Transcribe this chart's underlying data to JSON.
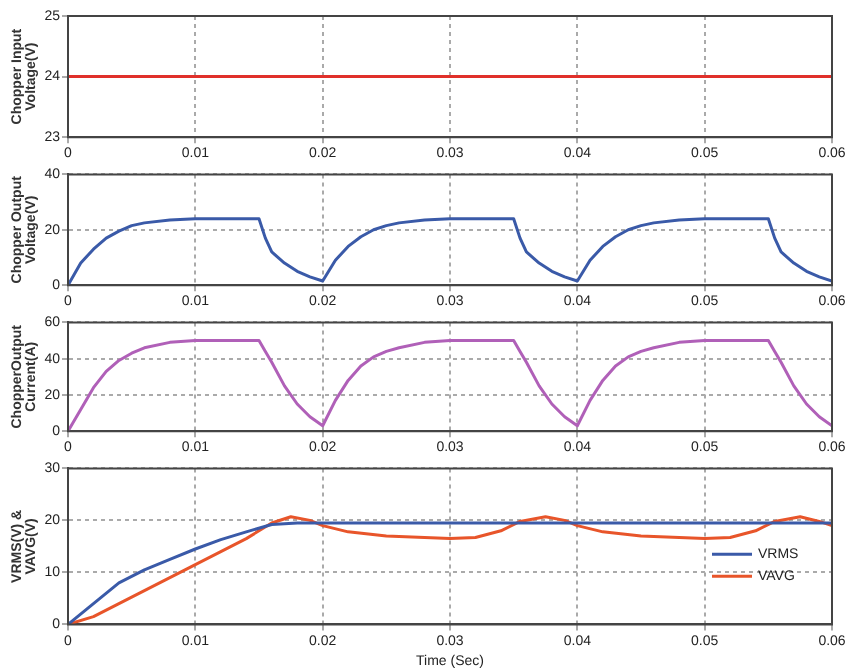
{
  "chart_data": [
    {
      "type": "line",
      "ylabel": "Chopper Input Voltage(V)",
      "xlim": [
        0,
        0.06
      ],
      "xticks": [
        0,
        0.01,
        0.02,
        0.03,
        0.04,
        0.05,
        0.06
      ],
      "ylim": [
        23,
        25
      ],
      "yticks": [
        23,
        24,
        25
      ],
      "grid": true,
      "series": [
        {
          "color": "#e0302a",
          "x": [
            0,
            0.06
          ],
          "values": [
            24,
            24
          ]
        }
      ]
    },
    {
      "type": "line",
      "ylabel": "Chopper Output Voltage(V)",
      "xlim": [
        0,
        0.06
      ],
      "xticks": [
        0,
        0.01,
        0.02,
        0.03,
        0.04,
        0.05,
        0.06
      ],
      "ylim": [
        0,
        40
      ],
      "yticks": [
        0,
        20,
        40
      ],
      "grid": true,
      "series": [
        {
          "color": "#3a5aa8",
          "x": [
            0,
            0.001,
            0.002,
            0.003,
            0.004,
            0.005,
            0.006,
            0.008,
            0.01,
            0.015,
            0.0155,
            0.016,
            0.017,
            0.018,
            0.019,
            0.02,
            0.021,
            0.022,
            0.023,
            0.024,
            0.025,
            0.026,
            0.028,
            0.03,
            0.035,
            0.0355,
            0.036,
            0.037,
            0.038,
            0.039,
            0.04,
            0.041,
            0.042,
            0.043,
            0.044,
            0.045,
            0.046,
            0.048,
            0.05,
            0.055,
            0.0555,
            0.056,
            0.057,
            0.058,
            0.059,
            0.06
          ],
          "values": [
            0,
            8,
            13,
            17,
            19.5,
            21.5,
            22.5,
            23.5,
            24,
            24,
            17,
            12,
            8,
            5,
            3,
            1.5,
            9,
            14,
            17.5,
            20,
            21.5,
            22.5,
            23.5,
            24,
            24,
            17,
            12,
            8,
            5,
            3,
            1.5,
            9,
            14,
            17.5,
            20,
            21.5,
            22.5,
            23.5,
            24,
            24,
            17,
            12,
            8,
            5,
            3,
            1.5
          ]
        }
      ]
    },
    {
      "type": "line",
      "ylabel": "ChopperOutput Current(A)",
      "xlim": [
        0,
        0.06
      ],
      "xticks": [
        0,
        0.01,
        0.02,
        0.03,
        0.04,
        0.05,
        0.06
      ],
      "ylim": [
        0,
        60
      ],
      "yticks": [
        0,
        20,
        40,
        60
      ],
      "grid": true,
      "series": [
        {
          "color": "#b060b8",
          "x": [
            0,
            0.001,
            0.002,
            0.003,
            0.004,
            0.005,
            0.006,
            0.008,
            0.01,
            0.015,
            0.0155,
            0.016,
            0.017,
            0.018,
            0.019,
            0.02,
            0.021,
            0.022,
            0.023,
            0.024,
            0.025,
            0.026,
            0.028,
            0.03,
            0.035,
            0.0355,
            0.036,
            0.037,
            0.038,
            0.039,
            0.04,
            0.041,
            0.042,
            0.043,
            0.044,
            0.045,
            0.046,
            0.048,
            0.05,
            0.055,
            0.0555,
            0.056,
            0.057,
            0.058,
            0.059,
            0.06
          ],
          "values": [
            0,
            12,
            24,
            33,
            39,
            43,
            46,
            49,
            50,
            50,
            44,
            38,
            25,
            15,
            8,
            3,
            17,
            28,
            36,
            41,
            44,
            46,
            49,
            50,
            50,
            44,
            38,
            25,
            15,
            8,
            3,
            17,
            28,
            36,
            41,
            44,
            46,
            49,
            50,
            50,
            44,
            38,
            25,
            15,
            8,
            3
          ]
        }
      ]
    },
    {
      "type": "line",
      "xlabel": "Time (Sec)",
      "ylabel": "VRMS(V) & VAVG(V)",
      "xlim": [
        0,
        0.06
      ],
      "xticks": [
        0,
        0.01,
        0.02,
        0.03,
        0.04,
        0.05,
        0.06
      ],
      "ylim": [
        0,
        30
      ],
      "yticks": [
        0,
        10,
        20,
        30
      ],
      "grid": true,
      "legend": "right",
      "series": [
        {
          "name": "VRMS",
          "color": "#3a5aa8",
          "x": [
            0,
            0.002,
            0.004,
            0.006,
            0.008,
            0.01,
            0.012,
            0.014,
            0.016,
            0.018,
            0.06
          ],
          "values": [
            0,
            4,
            8,
            10.5,
            12.5,
            14.5,
            16.3,
            17.8,
            19.2,
            19.5,
            19.5
          ]
        },
        {
          "name": "VAVG",
          "color": "#e8552a",
          "x": [
            0,
            0.002,
            0.004,
            0.006,
            0.008,
            0.01,
            0.012,
            0.014,
            0.016,
            0.0175,
            0.019,
            0.02,
            0.022,
            0.025,
            0.028,
            0.03,
            0.032,
            0.034,
            0.0355,
            0.0375,
            0.039,
            0.04,
            0.042,
            0.045,
            0.048,
            0.05,
            0.052,
            0.054,
            0.0555,
            0.0575,
            0.059,
            0.06
          ],
          "values": [
            0,
            1.5,
            4,
            6.5,
            9,
            11.5,
            14,
            16.5,
            19.5,
            20.7,
            20,
            19,
            17.8,
            17,
            16.7,
            16.5,
            16.7,
            18,
            19.8,
            20.7,
            20,
            19,
            17.8,
            17,
            16.7,
            16.5,
            16.7,
            18,
            19.8,
            20.7,
            19.8,
            19
          ]
        }
      ]
    }
  ]
}
